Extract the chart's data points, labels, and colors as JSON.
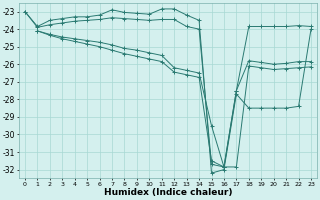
{
  "xlabel": "Humidex (Indice chaleur)",
  "bg_color": "#d4f0ee",
  "grid_color": "#a8d8d4",
  "line_color": "#2a7a72",
  "xlim": [
    -0.5,
    23.5
  ],
  "ylim": [
    -32.5,
    -22.5
  ],
  "yticks": [
    -23,
    -24,
    -25,
    -26,
    -27,
    -28,
    -29,
    -30,
    -31,
    -32
  ],
  "xticks": [
    0,
    1,
    2,
    3,
    4,
    5,
    6,
    7,
    8,
    9,
    10,
    11,
    12,
    13,
    14,
    15,
    16,
    17,
    18,
    19,
    20,
    21,
    22,
    23
  ],
  "line1_x": [
    0,
    1,
    2,
    3,
    4,
    5,
    6,
    7,
    8,
    9,
    10,
    11,
    12,
    13,
    14,
    15,
    16,
    17,
    18,
    19,
    20,
    21,
    22,
    23
  ],
  "line1_y": [
    -23.0,
    -23.85,
    -23.5,
    -23.4,
    -23.3,
    -23.3,
    -23.2,
    -22.9,
    -23.05,
    -23.1,
    -23.15,
    -22.85,
    -22.85,
    -23.2,
    -23.5,
    -32.2,
    -32.0,
    -27.7,
    -28.5,
    -28.5,
    -28.5,
    -28.5,
    -28.4,
    -24.0
  ],
  "line2_x": [
    0,
    1,
    2,
    3,
    4,
    5,
    6,
    7,
    8,
    9,
    10,
    11,
    12,
    13,
    14,
    15,
    16,
    17,
    18,
    19,
    20,
    21,
    22,
    23
  ],
  "line2_y": [
    -23.0,
    -23.9,
    -23.75,
    -23.65,
    -23.55,
    -23.5,
    -23.45,
    -23.35,
    -23.4,
    -23.45,
    -23.5,
    -23.45,
    -23.45,
    -23.85,
    -24.0,
    -31.7,
    -31.85,
    -27.5,
    -23.85,
    -23.85,
    -23.85,
    -23.85,
    -23.8,
    -23.85
  ],
  "line3_x": [
    1,
    2,
    3,
    4,
    5,
    6,
    7,
    8,
    9,
    10,
    11,
    12,
    13,
    14,
    15,
    16,
    17,
    18,
    19,
    20,
    21,
    22,
    23
  ],
  "line3_y": [
    -24.1,
    -24.3,
    -24.45,
    -24.55,
    -24.65,
    -24.75,
    -24.9,
    -25.1,
    -25.2,
    -25.35,
    -25.5,
    -26.2,
    -26.35,
    -26.5,
    -29.5,
    -31.85,
    -27.5,
    -25.8,
    -25.9,
    -26.0,
    -25.95,
    -25.85,
    -25.85
  ],
  "line4_x": [
    1,
    2,
    3,
    4,
    5,
    6,
    7,
    8,
    9,
    10,
    11,
    12,
    13,
    14,
    15,
    16,
    17,
    18,
    19,
    20,
    21,
    22,
    23
  ],
  "line4_y": [
    -24.1,
    -24.35,
    -24.55,
    -24.7,
    -24.85,
    -25.0,
    -25.2,
    -25.4,
    -25.55,
    -25.7,
    -25.85,
    -26.45,
    -26.6,
    -26.75,
    -31.5,
    -31.85,
    -31.85,
    -26.1,
    -26.2,
    -26.3,
    -26.25,
    -26.2,
    -26.15
  ]
}
